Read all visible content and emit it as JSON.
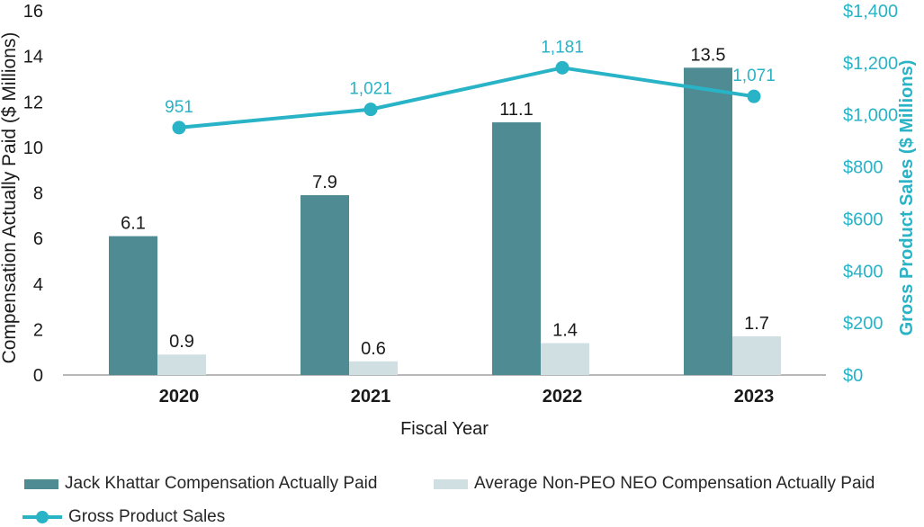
{
  "chart_data": {
    "type": "bar+line combo",
    "categories": [
      "2020",
      "2021",
      "2022",
      "2023"
    ],
    "series": [
      {
        "name": "Jack Khattar Compensation Actually Paid",
        "type": "bar",
        "axis": "left",
        "values": [
          6.1,
          7.9,
          11.1,
          13.5
        ],
        "labels": [
          "6.1",
          "7.9",
          "11.1",
          "13.5"
        ],
        "color": "#4f8b93"
      },
      {
        "name": "Average Non-PEO NEO Compensation Actually Paid",
        "type": "bar",
        "axis": "left",
        "values": [
          0.9,
          0.6,
          1.4,
          1.7
        ],
        "labels": [
          "0.9",
          "0.6",
          "1.4",
          "1.7"
        ],
        "color": "#d0dfe2"
      },
      {
        "name": "Gross Product Sales",
        "type": "line",
        "axis": "right",
        "values": [
          951,
          1021,
          1181,
          1071
        ],
        "labels": [
          "951",
          "1,021",
          "1,181",
          "1,071"
        ],
        "color": "#29b3c7"
      }
    ],
    "xlabel": "Fiscal Year",
    "left_axis": {
      "label": "Compensation Actually Paid ($ Millions)",
      "min": 0,
      "max": 16,
      "step": 2,
      "ticks": [
        "0",
        "2",
        "4",
        "6",
        "8",
        "10",
        "12",
        "14",
        "16"
      ]
    },
    "right_axis": {
      "label": "Gross Product Sales ($ Millions)",
      "min": 0,
      "max": 1400,
      "step": 200,
      "ticks": [
        "$0",
        "$200",
        "$400",
        "$600",
        "$800",
        "$1,000",
        "$1,200",
        "$1,400"
      ]
    },
    "grid": false,
    "legend_position": "bottom-left",
    "colors": {
      "text": "#1a1a1a",
      "baseline": "#b8b8b8",
      "right_axis_text": "#29b3c7"
    }
  }
}
